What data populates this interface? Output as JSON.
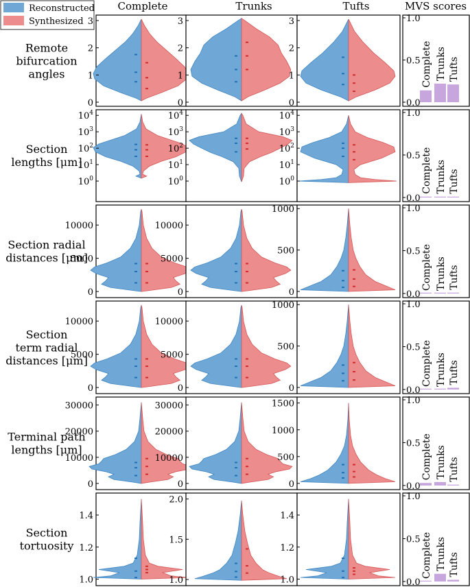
{
  "legend": {
    "reconstructed": "Reconstructed",
    "synthesized": "Synthesized"
  },
  "colors": {
    "reconstructed": "#6fa8d6",
    "reconstructed_edge": "#3f85c2",
    "synthesized": "#ec8c8c",
    "synthesized_edge": "#d45656",
    "bar": "#c6a6dd"
  },
  "columns": [
    "Complete",
    "Trunks",
    "Tufts"
  ],
  "mvs_title": "MVS scores",
  "rows": [
    {
      "label_lines": [
        "Remote",
        "bifurcation",
        "angles"
      ],
      "scale": "linear",
      "ylim": [
        0,
        3.1
      ],
      "ticks": [
        [
          0,
          "0"
        ],
        [
          1,
          "1"
        ],
        [
          2,
          "2"
        ],
        [
          3,
          "3"
        ]
      ],
      "mvs": [
        0.14,
        0.22,
        0.21
      ],
      "violins": [
        {
          "profile": "ang_c",
          "left": [
            0.75,
            1.1,
            1.75
          ],
          "right": [
            0.5,
            0.9,
            1.45
          ]
        },
        {
          "profile": "ang_t",
          "left": [
            0.75,
            1.2,
            1.7
          ],
          "right": [
            1.2,
            1.7,
            2.2
          ]
        },
        {
          "profile": "ang_f",
          "left": [
            0.65,
            1.05,
            1.65
          ],
          "right": [
            0.4,
            0.7,
            1.0
          ]
        }
      ]
    },
    {
      "label_lines": [
        "Section",
        "lengths [μm]"
      ],
      "scale": "log",
      "ylim": [
        0.1,
        15000
      ],
      "ticks": [
        [
          1,
          "10^0"
        ],
        [
          10,
          "10^1"
        ],
        [
          100,
          "10^2"
        ],
        [
          1000,
          "10^3"
        ],
        [
          10000,
          "10^4"
        ]
      ],
      "mvs": [
        0.01,
        0.01,
        0.01
      ],
      "violins": [
        {
          "profile": "len_c",
          "left": [
            32,
            80,
            170
          ],
          "right": [
            32,
            80,
            160
          ]
        },
        {
          "profile": "len_t",
          "left": [
            60,
            200,
            400
          ],
          "right": [
            90,
            200,
            400
          ]
        },
        {
          "profile": "len_f",
          "left": [
            32,
            100,
            200
          ],
          "right": [
            20,
            60,
            160
          ]
        }
      ]
    },
    {
      "label_lines": [
        "Section radial",
        "distances [μm]"
      ],
      "scale": "linear",
      "ylim": [
        -300,
        12600
      ],
      "ticks": [
        [
          0,
          "0"
        ],
        [
          5000,
          "5000"
        ],
        [
          10000,
          "10000"
        ]
      ],
      "mvs": [
        0.0,
        0.0,
        0.01
      ],
      "violins": [
        {
          "profile": "rad_c",
          "left": [
            1300,
            3000,
            4200
          ],
          "right": [
            1300,
            3000,
            4200
          ]
        },
        {
          "profile": "rad_c",
          "left": [
            1300,
            3000,
            4200
          ],
          "right": [
            1300,
            3000,
            4200
          ]
        },
        {
          "profile": "rad_f",
          "left": [
            50,
            130,
            250
          ],
          "right": [
            60,
            150,
            260
          ]
        }
      ],
      "tufts_ylim": [
        -25,
        1010
      ],
      "tufts_ticks": [
        [
          0,
          "0"
        ],
        [
          500,
          "500"
        ],
        [
          1000,
          "1000"
        ]
      ]
    },
    {
      "label_lines": [
        "Section",
        "term radial",
        "distances [μm]"
      ],
      "scale": "linear",
      "ylim": [
        -300,
        12600
      ],
      "ticks": [
        [
          0,
          "0"
        ],
        [
          5000,
          "5000"
        ],
        [
          10000,
          "10000"
        ]
      ],
      "mvs": [
        0.0,
        0.0,
        0.02
      ],
      "violins": [
        {
          "profile": "rad_c",
          "left": [
            1500,
            3200,
            4300
          ],
          "right": [
            1500,
            3200,
            4300
          ]
        },
        {
          "profile": "rad_c",
          "left": [
            1500,
            3200,
            4300
          ],
          "right": [
            1500,
            3200,
            4300
          ]
        },
        {
          "profile": "rad_f",
          "left": [
            80,
            170,
            270
          ],
          "right": [
            90,
            190,
            300
          ]
        }
      ],
      "tufts_ylim": [
        -25,
        1010
      ],
      "tufts_ticks": [
        [
          0,
          "0"
        ],
        [
          500,
          "500"
        ],
        [
          1000,
          "1000"
        ]
      ]
    },
    {
      "label_lines": [
        "Terminal path",
        "lengths [μm]"
      ],
      "scale": "linear",
      "ylim": [
        -800,
        32000
      ],
      "ticks": [
        [
          0,
          "0"
        ],
        [
          10000,
          "10000"
        ],
        [
          20000,
          "20000"
        ],
        [
          30000,
          "30000"
        ]
      ],
      "mvs": [
        0.03,
        0.04,
        0.01
      ],
      "violins": [
        {
          "profile": "path_c",
          "left": [
            3000,
            6000,
            8000
          ],
          "right": [
            3500,
            6500,
            9500
          ]
        },
        {
          "profile": "path_c",
          "left": [
            3000,
            6000,
            8000
          ],
          "right": [
            3500,
            6500,
            9500
          ]
        },
        {
          "profile": "path_f",
          "left": [
            100,
            200,
            350
          ],
          "right": [
            120,
            220,
            350
          ]
        }
      ],
      "tufts_ylim": [
        -40,
        1560
      ],
      "tufts_ticks": [
        [
          0,
          "0"
        ],
        [
          500,
          "500"
        ],
        [
          1000,
          "1000"
        ],
        [
          1500,
          "1500"
        ]
      ]
    },
    {
      "label_lines": [
        "Section",
        "tortuosity"
      ],
      "scale": "linear",
      "ylim": [
        0.985,
        1.52
      ],
      "ticks": [
        [
          1.0,
          "1.0"
        ],
        [
          1.2,
          "1.2"
        ],
        [
          1.4,
          "1.4"
        ]
      ],
      "mvs": [
        0.0,
        0.09,
        0.02
      ],
      "violins": [
        {
          "profile": "tor_c",
          "left": [
            1.01,
            1.05,
            1.13
          ],
          "right": [
            1.04,
            1.06,
            1.08
          ]
        },
        {
          "profile": "tor_t",
          "left": [
            1.03,
            1.1,
            1.2
          ],
          "right": [
            1.08,
            1.17,
            1.38
          ]
        },
        {
          "profile": "tor_c",
          "left": [
            1.01,
            1.05,
            1.13
          ],
          "right": [
            1.03,
            1.05,
            1.07
          ]
        }
      ],
      "trunks_ylim": [
        0.975,
        2.04
      ],
      "trunks_ticks": [
        [
          1.0,
          "1.0"
        ],
        [
          1.5,
          "1.5"
        ],
        [
          2.0,
          "2.0"
        ]
      ]
    }
  ],
  "mvs_ticks": [
    [
      0.0,
      "0.0"
    ],
    [
      0.5,
      "0.5"
    ],
    [
      1.0,
      "1.0"
    ]
  ],
  "chart_data": {
    "type": "violin",
    "title": "",
    "columns": [
      "Complete",
      "Trunks",
      "Tufts"
    ],
    "series": [
      {
        "name": "Reconstructed"
      },
      {
        "name": "Synthesized"
      }
    ],
    "metrics": [
      "Remote bifurcation angles",
      "Section lengths [μm]",
      "Section radial distances [μm]",
      "Section term radial distances [μm]",
      "Terminal path lengths [μm]",
      "Section tortuosity"
    ],
    "mvs_scores": {
      "categories": [
        "Complete",
        "Trunks",
        "Tufts"
      ],
      "values": [
        [
          0.14,
          0.22,
          0.21
        ],
        [
          0.01,
          0.01,
          0.01
        ],
        [
          0.0,
          0.0,
          0.01
        ],
        [
          0.0,
          0.0,
          0.02
        ],
        [
          0.03,
          0.04,
          0.01
        ],
        [
          0.0,
          0.09,
          0.02
        ]
      ],
      "ylim": [
        0,
        1.0
      ]
    }
  }
}
